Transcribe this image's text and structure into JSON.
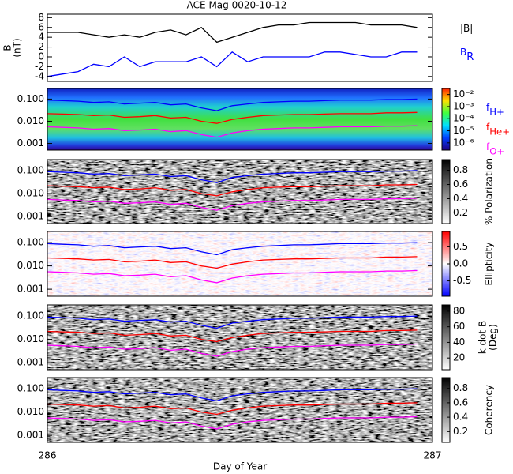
{
  "chart_data": [
    {
      "type": "line",
      "title": "ACE Mag 0020-10-12",
      "ylabel": "B",
      "ylabel_unit": "(nT)",
      "x": [
        286,
        286.04,
        286.08,
        286.12,
        286.16,
        286.2,
        286.24,
        286.28,
        286.32,
        286.36,
        286.4,
        286.44,
        286.48,
        286.52,
        286.56,
        286.6,
        286.64,
        286.68,
        286.72,
        286.76,
        286.8,
        286.84,
        286.88,
        286.92,
        286.96
      ],
      "xlim": [
        286,
        287
      ],
      "ylim": [
        -5,
        8.7
      ],
      "yticks": [
        -4,
        -2,
        0,
        2,
        4,
        6,
        8
      ],
      "ylog": false,
      "series": [
        {
          "name": "|B|",
          "color": "#000000",
          "values": [
            5,
            5,
            5,
            4.5,
            4,
            4.5,
            4,
            5,
            5.5,
            4.5,
            6,
            3,
            4,
            5,
            6,
            6.5,
            6.5,
            7,
            7,
            7,
            7,
            6.5,
            6.5,
            6.5,
            6
          ]
        },
        {
          "name": "B",
          "subscript": "R",
          "color": "#0000ff",
          "values": [
            -4,
            -3.5,
            -3,
            -1.5,
            -2,
            0,
            -2,
            -1,
            -1,
            -1,
            0,
            -2,
            1,
            -1,
            0,
            0,
            0,
            0,
            1,
            1,
            0.5,
            0,
            0,
            1,
            1
          ]
        }
      ]
    },
    {
      "type": "spectrogram",
      "colormap": "jet",
      "x": [
        286,
        286.04,
        286.08,
        286.12,
        286.16,
        286.2,
        286.24,
        286.28,
        286.32,
        286.36,
        286.4,
        286.44,
        286.48,
        286.52,
        286.56,
        286.6,
        286.64,
        286.68,
        286.72,
        286.76,
        286.8,
        286.84,
        286.88,
        286.92,
        286.96
      ],
      "xlim": [
        286,
        287
      ],
      "ylim": [
        0.0005,
        0.3
      ],
      "ylog": true,
      "yticks": [
        {
          "value": 0.1,
          "label": "0.100"
        },
        {
          "value": 0.01,
          "label": "0.010"
        },
        {
          "value": 0.001,
          "label": "0.001"
        }
      ],
      "clim": [
        -6.6,
        -1.5
      ],
      "cticks": [
        {
          "value": -2,
          "label": "10⁻²"
        },
        {
          "value": -3,
          "label": "10⁻³"
        },
        {
          "value": -4,
          "label": "10⁻⁴"
        },
        {
          "value": -5,
          "label": "10⁻⁵"
        },
        {
          "value": -6,
          "label": "10⁻⁶"
        }
      ],
      "legend": true,
      "series": [
        {
          "name": "f",
          "subscript": "H+",
          "color": "#0000ff",
          "values": [
            0.09,
            0.085,
            0.08,
            0.07,
            0.075,
            0.06,
            0.065,
            0.07,
            0.055,
            0.06,
            0.04,
            0.03,
            0.05,
            0.06,
            0.07,
            0.075,
            0.08,
            0.08,
            0.085,
            0.09,
            0.09,
            0.09,
            0.095,
            0.095,
            0.1
          ]
        },
        {
          "name": "f",
          "subscript": "He+",
          "color": "#ff0000",
          "values": [
            0.022,
            0.021,
            0.02,
            0.018,
            0.019,
            0.015,
            0.016,
            0.018,
            0.014,
            0.015,
            0.01,
            0.008,
            0.012,
            0.015,
            0.018,
            0.019,
            0.02,
            0.02,
            0.021,
            0.022,
            0.022,
            0.022,
            0.024,
            0.024,
            0.025
          ]
        },
        {
          "name": "f",
          "subscript": "O+",
          "color": "#ff00ff",
          "values": [
            0.0056,
            0.0053,
            0.005,
            0.0044,
            0.0047,
            0.0038,
            0.004,
            0.0044,
            0.0034,
            0.0038,
            0.0025,
            0.0019,
            0.003,
            0.0038,
            0.0044,
            0.0047,
            0.005,
            0.005,
            0.0053,
            0.0056,
            0.0056,
            0.0056,
            0.006,
            0.006,
            0.0063
          ]
        }
      ]
    },
    {
      "type": "spectrogram",
      "colormap": "gray",
      "cbar_label": "% Polarization",
      "x": [
        286,
        286.04,
        286.08,
        286.12,
        286.16,
        286.2,
        286.24,
        286.28,
        286.32,
        286.36,
        286.4,
        286.44,
        286.48,
        286.52,
        286.56,
        286.6,
        286.64,
        286.68,
        286.72,
        286.76,
        286.8,
        286.84,
        286.88,
        286.92,
        286.96
      ],
      "xlim": [
        286,
        287
      ],
      "ylim": [
        0.0005,
        0.3
      ],
      "ylog": true,
      "yticks": [
        {
          "value": 0.1,
          "label": "0.100"
        },
        {
          "value": 0.01,
          "label": "0.010"
        },
        {
          "value": 0.001,
          "label": "0.001"
        }
      ],
      "clim": [
        0.05,
        0.95
      ],
      "cticks": [
        0.2,
        0.4,
        0.6,
        0.8
      ],
      "series": [
        {
          "color": "#0000ff",
          "values": [
            0.09,
            0.085,
            0.08,
            0.07,
            0.075,
            0.06,
            0.065,
            0.07,
            0.055,
            0.06,
            0.04,
            0.03,
            0.05,
            0.06,
            0.07,
            0.075,
            0.08,
            0.08,
            0.085,
            0.09,
            0.09,
            0.09,
            0.095,
            0.095,
            0.1
          ]
        },
        {
          "color": "#ff0000",
          "values": [
            0.022,
            0.021,
            0.02,
            0.018,
            0.019,
            0.015,
            0.016,
            0.018,
            0.014,
            0.015,
            0.01,
            0.008,
            0.012,
            0.015,
            0.018,
            0.019,
            0.02,
            0.02,
            0.021,
            0.022,
            0.022,
            0.022,
            0.024,
            0.024,
            0.025
          ]
        },
        {
          "color": "#ff00ff",
          "values": [
            0.0056,
            0.0053,
            0.005,
            0.0044,
            0.0047,
            0.0038,
            0.004,
            0.0044,
            0.0034,
            0.0038,
            0.0025,
            0.0019,
            0.003,
            0.0038,
            0.0044,
            0.0047,
            0.005,
            0.005,
            0.0053,
            0.0056,
            0.0056,
            0.0056,
            0.006,
            0.006,
            0.0063
          ]
        }
      ]
    },
    {
      "type": "spectrogram",
      "colormap": "bwr",
      "cbar_label": "Ellipticity",
      "x": [
        286,
        286.04,
        286.08,
        286.12,
        286.16,
        286.2,
        286.24,
        286.28,
        286.32,
        286.36,
        286.4,
        286.44,
        286.48,
        286.52,
        286.56,
        286.6,
        286.64,
        286.68,
        286.72,
        286.76,
        286.8,
        286.84,
        286.88,
        286.92,
        286.96
      ],
      "xlim": [
        286,
        287
      ],
      "ylim": [
        0.0005,
        0.3
      ],
      "ylog": true,
      "yticks": [
        {
          "value": 0.1,
          "label": "0.100"
        },
        {
          "value": 0.01,
          "label": "0.010"
        },
        {
          "value": 0.001,
          "label": "0.001"
        }
      ],
      "clim": [
        -0.95,
        0.95
      ],
      "cticks": [
        0.5,
        {
          "value": 0,
          "label": "0.0"
        },
        -0.5
      ],
      "series": [
        {
          "color": "#0000ff",
          "values": [
            0.09,
            0.085,
            0.08,
            0.07,
            0.075,
            0.06,
            0.065,
            0.07,
            0.055,
            0.06,
            0.04,
            0.03,
            0.05,
            0.06,
            0.07,
            0.075,
            0.08,
            0.08,
            0.085,
            0.09,
            0.09,
            0.09,
            0.095,
            0.095,
            0.1
          ]
        },
        {
          "color": "#ff0000",
          "values": [
            0.022,
            0.021,
            0.02,
            0.018,
            0.019,
            0.015,
            0.016,
            0.018,
            0.014,
            0.015,
            0.01,
            0.008,
            0.012,
            0.015,
            0.018,
            0.019,
            0.02,
            0.02,
            0.021,
            0.022,
            0.022,
            0.022,
            0.024,
            0.024,
            0.025
          ]
        },
        {
          "color": "#ff00ff",
          "values": [
            0.0056,
            0.0053,
            0.005,
            0.0044,
            0.0047,
            0.0038,
            0.004,
            0.0044,
            0.0034,
            0.0038,
            0.0025,
            0.0019,
            0.003,
            0.0038,
            0.0044,
            0.0047,
            0.005,
            0.005,
            0.0053,
            0.0056,
            0.0056,
            0.0056,
            0.006,
            0.006,
            0.0063
          ]
        }
      ]
    },
    {
      "type": "spectrogram",
      "colormap": "gray",
      "cbar_label": "k dot B",
      "cbar_label_unit": "(Deg)",
      "x": [
        286,
        286.04,
        286.08,
        286.12,
        286.16,
        286.2,
        286.24,
        286.28,
        286.32,
        286.36,
        286.4,
        286.44,
        286.48,
        286.52,
        286.56,
        286.6,
        286.64,
        286.68,
        286.72,
        286.76,
        286.8,
        286.84,
        286.88,
        286.92,
        286.96
      ],
      "xlim": [
        286,
        287
      ],
      "ylim": [
        0.0005,
        0.3
      ],
      "ylog": true,
      "yticks": [
        {
          "value": 0.1,
          "label": "0.100"
        },
        {
          "value": 0.01,
          "label": "0.010"
        },
        {
          "value": 0.001,
          "label": "0.001"
        }
      ],
      "clim": [
        5,
        88
      ],
      "cticks": [
        20,
        40,
        60,
        80
      ],
      "series": [
        {
          "color": "#0000ff",
          "values": [
            0.09,
            0.085,
            0.08,
            0.07,
            0.075,
            0.06,
            0.065,
            0.07,
            0.055,
            0.06,
            0.04,
            0.03,
            0.05,
            0.06,
            0.07,
            0.075,
            0.08,
            0.08,
            0.085,
            0.09,
            0.09,
            0.09,
            0.095,
            0.095,
            0.1
          ]
        },
        {
          "color": "#ff0000",
          "values": [
            0.022,
            0.021,
            0.02,
            0.018,
            0.019,
            0.015,
            0.016,
            0.018,
            0.014,
            0.015,
            0.01,
            0.008,
            0.012,
            0.015,
            0.018,
            0.019,
            0.02,
            0.02,
            0.021,
            0.022,
            0.022,
            0.022,
            0.024,
            0.024,
            0.025
          ]
        },
        {
          "color": "#ff00ff",
          "values": [
            0.0056,
            0.0053,
            0.005,
            0.0044,
            0.0047,
            0.0038,
            0.004,
            0.0044,
            0.0034,
            0.0038,
            0.0025,
            0.0019,
            0.003,
            0.0038,
            0.0044,
            0.0047,
            0.005,
            0.005,
            0.0053,
            0.0056,
            0.0056,
            0.0056,
            0.006,
            0.006,
            0.0063
          ]
        }
      ]
    },
    {
      "type": "spectrogram",
      "colormap": "gray",
      "cbar_label": "Coherency",
      "xlabel": "Day of Year",
      "x": [
        286,
        286.04,
        286.08,
        286.12,
        286.16,
        286.2,
        286.24,
        286.28,
        286.32,
        286.36,
        286.4,
        286.44,
        286.48,
        286.52,
        286.56,
        286.6,
        286.64,
        286.68,
        286.72,
        286.76,
        286.8,
        286.84,
        286.88,
        286.92,
        286.96
      ],
      "xlim": [
        286,
        287
      ],
      "xticks": [
        286,
        287
      ],
      "ylim": [
        0.0005,
        0.3
      ],
      "ylog": true,
      "yticks": [
        {
          "value": 0.1,
          "label": "0.100"
        },
        {
          "value": 0.01,
          "label": "0.010"
        },
        {
          "value": 0.001,
          "label": "0.001"
        }
      ],
      "clim": [
        0.05,
        0.95
      ],
      "cticks": [
        0.2,
        0.4,
        0.6,
        0.8
      ],
      "series": [
        {
          "color": "#0000ff",
          "values": [
            0.09,
            0.085,
            0.08,
            0.07,
            0.075,
            0.06,
            0.065,
            0.07,
            0.055,
            0.06,
            0.04,
            0.03,
            0.05,
            0.06,
            0.07,
            0.075,
            0.08,
            0.08,
            0.085,
            0.09,
            0.09,
            0.09,
            0.095,
            0.095,
            0.1
          ]
        },
        {
          "color": "#ff0000",
          "values": [
            0.022,
            0.021,
            0.02,
            0.018,
            0.019,
            0.015,
            0.016,
            0.018,
            0.014,
            0.015,
            0.01,
            0.008,
            0.012,
            0.015,
            0.018,
            0.019,
            0.02,
            0.02,
            0.021,
            0.022,
            0.022,
            0.022,
            0.024,
            0.024,
            0.025
          ]
        },
        {
          "color": "#ff00ff",
          "values": [
            0.0056,
            0.0053,
            0.005,
            0.0044,
            0.0047,
            0.0038,
            0.004,
            0.0044,
            0.0034,
            0.0038,
            0.0025,
            0.0019,
            0.003,
            0.0038,
            0.0044,
            0.0047,
            0.005,
            0.005,
            0.0053,
            0.0056,
            0.0056,
            0.0056,
            0.006,
            0.006,
            0.0063
          ]
        }
      ]
    }
  ]
}
